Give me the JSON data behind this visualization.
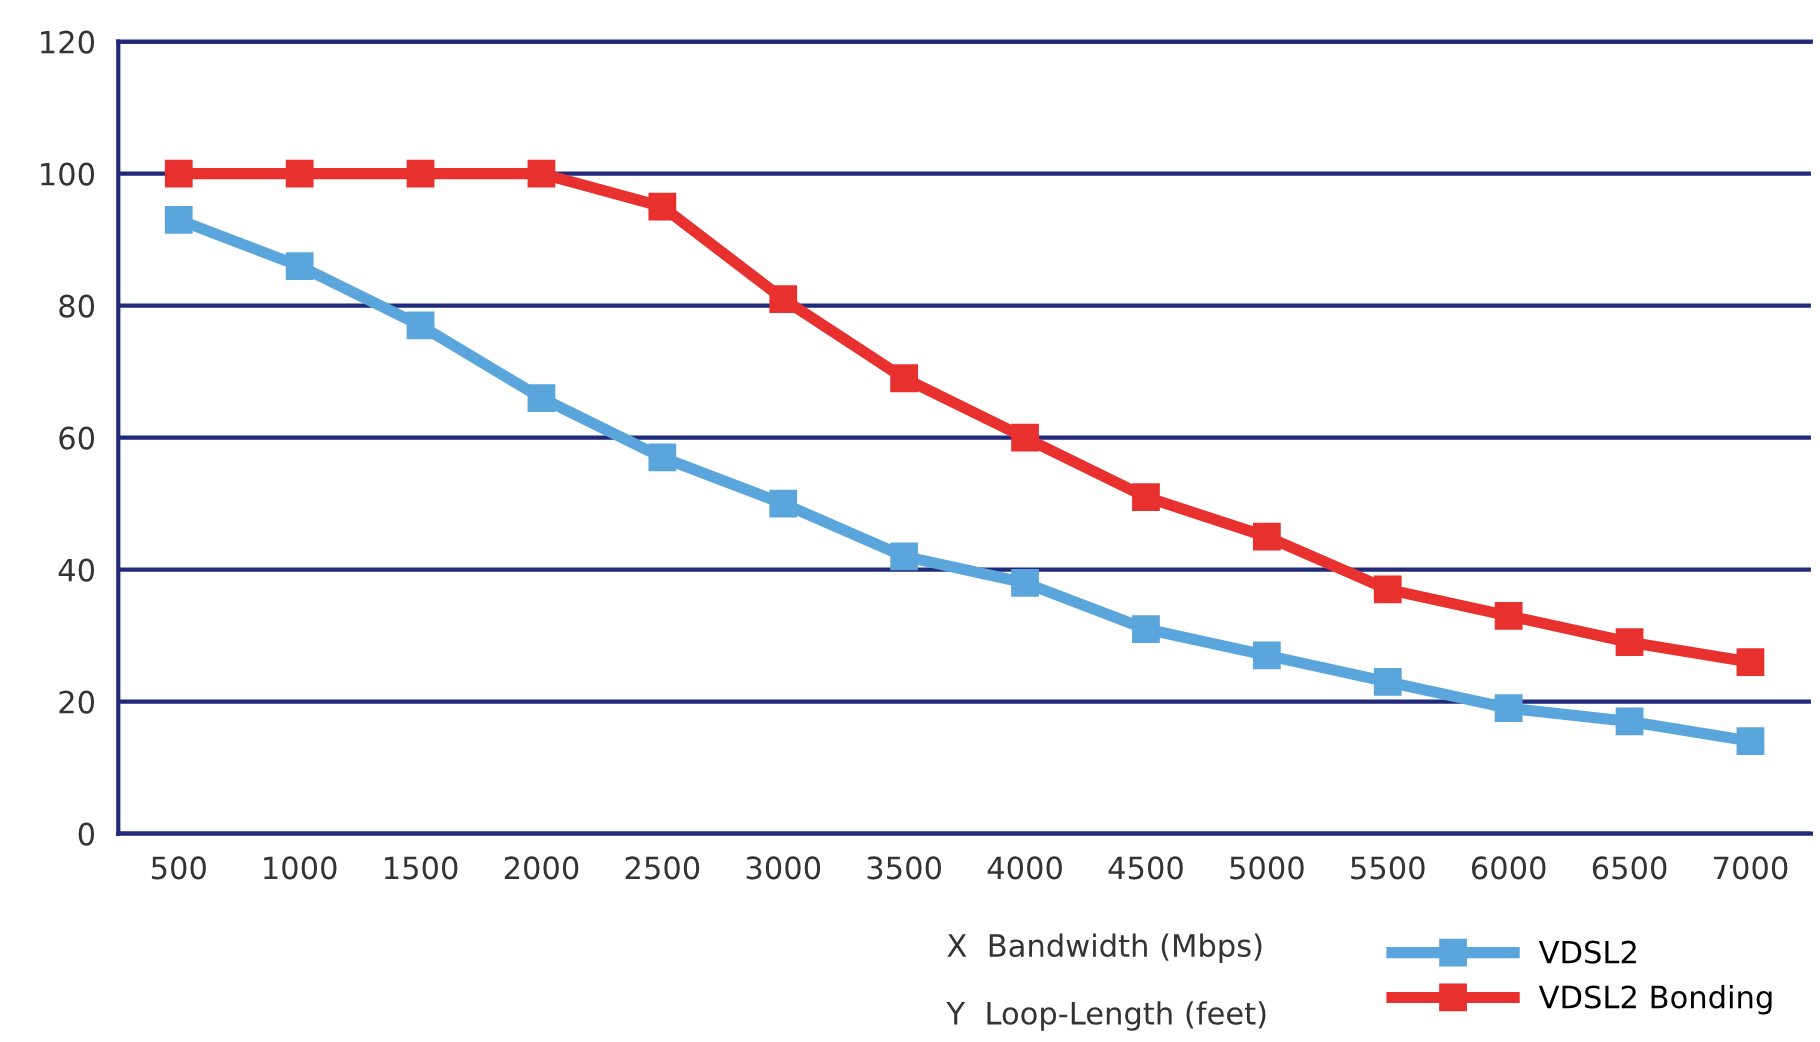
{
  "chart_data": {
    "type": "line",
    "categories": [
      "500",
      "1000",
      "1500",
      "2000",
      "2500",
      "3000",
      "3500",
      "4000",
      "4500",
      "5000",
      "5500",
      "6000",
      "6500",
      "7000"
    ],
    "series": [
      {
        "name": "VDSL2",
        "color": "#5aa5dc",
        "values": [
          93,
          86,
          77,
          66,
          57,
          50,
          42,
          38,
          31,
          27,
          23,
          19,
          17,
          14
        ]
      },
      {
        "name": "VDSL2 Bonding",
        "color": "#e8302e",
        "values": [
          100,
          100,
          100,
          100,
          95,
          81,
          69,
          60,
          51,
          45,
          37,
          33,
          29,
          26
        ]
      }
    ],
    "ylim": [
      0,
      120
    ],
    "yticks": [
      0,
      20,
      40,
      60,
      80,
      100,
      120
    ],
    "grid": "y",
    "legend": "bottom right",
    "marker": "square",
    "line_style": "solid",
    "annotations": [
      "X  Bandwidth (Mbps)",
      "Y  Loop-Length (feet)"
    ]
  }
}
